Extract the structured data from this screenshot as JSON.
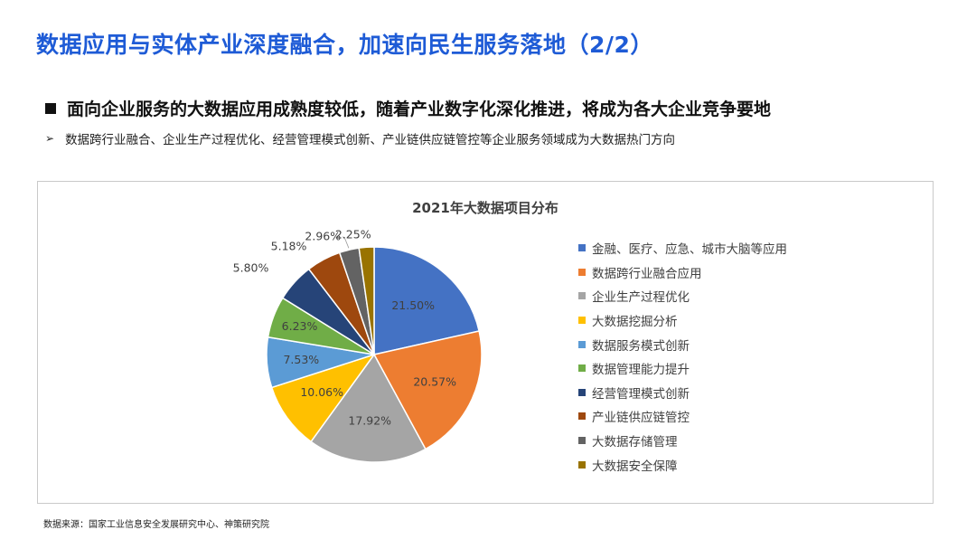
{
  "page": {
    "title": "数据应用与实体产业深度融合，加速向民生服务落地（2/2）",
    "bullet": "面向企业服务的大数据应用成熟度较低，随着产业数字化深化推进，将成为各大企业竞争要地",
    "sub_bullet_marker": "➢",
    "sub_bullet": "数据跨行业融合、企业生产过程优化、经营管理模式创新、产业链供应链管控等企业服务领域成为大数据热门方向",
    "source": "数据来源：国家工业信息安全发展研究中心、神策研究院"
  },
  "chart_data": {
    "type": "pie",
    "title": "2021年大数据项目分布",
    "legend_position": "right",
    "slices": [
      {
        "label": "金融、医疗、应急、城市大脑等应用",
        "value": 21.5,
        "display": "21.50%",
        "color": "#4472C4"
      },
      {
        "label": "数据跨行业融合应用",
        "value": 20.57,
        "display": "20.57%",
        "color": "#ED7D31"
      },
      {
        "label": "企业生产过程优化",
        "value": 17.92,
        "display": "17.92%",
        "color": "#A5A5A5"
      },
      {
        "label": "大数据挖掘分析",
        "value": 10.06,
        "display": "10.06%",
        "color": "#FFC000"
      },
      {
        "label": "数据服务模式创新",
        "value": 7.53,
        "display": "7.53%",
        "color": "#5B9BD5"
      },
      {
        "label": "数据管理能力提升",
        "value": 6.23,
        "display": "6.23%",
        "color": "#70AD47"
      },
      {
        "label": "经营管理模式创新",
        "value": 5.8,
        "display": "5.80%",
        "color": "#264478"
      },
      {
        "label": "产业链供应链管控",
        "value": 5.18,
        "display": "5.18%",
        "color": "#9E480E"
      },
      {
        "label": "大数据存储管理",
        "value": 2.96,
        "display": "2.96%",
        "color": "#636363"
      },
      {
        "label": "大数据安全保障",
        "value": 2.25,
        "display": "2.25%",
        "color": "#997300"
      }
    ]
  }
}
